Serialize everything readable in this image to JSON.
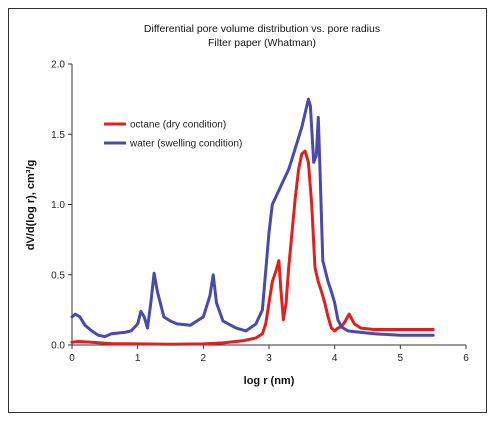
{
  "chart_data": {
    "type": "line",
    "title": "Differential pore volume distribution vs. pore radius",
    "subtitle": "Filter paper (Whatman)",
    "xlabel": "log r (nm)",
    "ylabel": "dV/d(log r), cm³/g",
    "xlim": [
      0,
      6
    ],
    "ylim": [
      0,
      2.0
    ],
    "xticks": [
      "0",
      "1",
      "2",
      "3",
      "4",
      "5",
      "6"
    ],
    "yticks": [
      "0.0",
      "0.5",
      "1.0",
      "1.5",
      "2.0"
    ],
    "grid": false,
    "legend_position": "upper-left",
    "series": [
      {
        "name": "octane (dry condition)",
        "color": "#e02020",
        "points": [
          [
            0.0,
            0.02
          ],
          [
            0.1,
            0.025
          ],
          [
            0.3,
            0.02
          ],
          [
            0.6,
            0.01
          ],
          [
            1.0,
            0.008
          ],
          [
            1.5,
            0.005
          ],
          [
            2.0,
            0.008
          ],
          [
            2.3,
            0.015
          ],
          [
            2.6,
            0.03
          ],
          [
            2.8,
            0.05
          ],
          [
            2.9,
            0.08
          ],
          [
            2.95,
            0.15
          ],
          [
            3.0,
            0.3
          ],
          [
            3.05,
            0.45
          ],
          [
            3.1,
            0.52
          ],
          [
            3.15,
            0.6
          ],
          [
            3.18,
            0.4
          ],
          [
            3.22,
            0.18
          ],
          [
            3.26,
            0.3
          ],
          [
            3.3,
            0.55
          ],
          [
            3.35,
            0.8
          ],
          [
            3.4,
            1.05
          ],
          [
            3.45,
            1.25
          ],
          [
            3.5,
            1.36
          ],
          [
            3.55,
            1.38
          ],
          [
            3.6,
            1.3
          ],
          [
            3.65,
            1.0
          ],
          [
            3.7,
            0.55
          ],
          [
            3.75,
            0.45
          ],
          [
            3.8,
            0.38
          ],
          [
            3.85,
            0.3
          ],
          [
            3.9,
            0.2
          ],
          [
            3.95,
            0.12
          ],
          [
            4.0,
            0.1
          ],
          [
            4.05,
            0.12
          ],
          [
            4.1,
            0.13
          ],
          [
            4.15,
            0.16
          ],
          [
            4.22,
            0.22
          ],
          [
            4.3,
            0.15
          ],
          [
            4.4,
            0.12
          ],
          [
            4.6,
            0.11
          ],
          [
            5.0,
            0.11
          ],
          [
            5.5,
            0.11
          ]
        ]
      },
      {
        "name": "water (swelling condition)",
        "color": "#4a4aa8",
        "points": [
          [
            0.0,
            0.2
          ],
          [
            0.05,
            0.22
          ],
          [
            0.12,
            0.2
          ],
          [
            0.2,
            0.14
          ],
          [
            0.3,
            0.1
          ],
          [
            0.4,
            0.07
          ],
          [
            0.5,
            0.06
          ],
          [
            0.6,
            0.08
          ],
          [
            0.8,
            0.09
          ],
          [
            0.9,
            0.1
          ],
          [
            1.0,
            0.15
          ],
          [
            1.05,
            0.24
          ],
          [
            1.1,
            0.2
          ],
          [
            1.15,
            0.12
          ],
          [
            1.2,
            0.3
          ],
          [
            1.25,
            0.51
          ],
          [
            1.3,
            0.38
          ],
          [
            1.4,
            0.2
          ],
          [
            1.5,
            0.17
          ],
          [
            1.6,
            0.15
          ],
          [
            1.8,
            0.14
          ],
          [
            2.0,
            0.2
          ],
          [
            2.1,
            0.35
          ],
          [
            2.15,
            0.5
          ],
          [
            2.2,
            0.3
          ],
          [
            2.3,
            0.17
          ],
          [
            2.5,
            0.12
          ],
          [
            2.65,
            0.1
          ],
          [
            2.8,
            0.15
          ],
          [
            2.9,
            0.25
          ],
          [
            3.0,
            0.8
          ],
          [
            3.05,
            1.0
          ],
          [
            3.1,
            1.05
          ],
          [
            3.2,
            1.15
          ],
          [
            3.3,
            1.25
          ],
          [
            3.4,
            1.4
          ],
          [
            3.5,
            1.55
          ],
          [
            3.55,
            1.65
          ],
          [
            3.6,
            1.75
          ],
          [
            3.63,
            1.7
          ],
          [
            3.68,
            1.3
          ],
          [
            3.72,
            1.35
          ],
          [
            3.75,
            1.62
          ],
          [
            3.78,
            1.2
          ],
          [
            3.82,
            0.6
          ],
          [
            3.9,
            0.45
          ],
          [
            3.95,
            0.38
          ],
          [
            4.0,
            0.3
          ],
          [
            4.05,
            0.18
          ],
          [
            4.1,
            0.13
          ],
          [
            4.2,
            0.1
          ],
          [
            4.4,
            0.09
          ],
          [
            4.6,
            0.08
          ],
          [
            5.0,
            0.07
          ],
          [
            5.5,
            0.07
          ]
        ]
      }
    ]
  }
}
